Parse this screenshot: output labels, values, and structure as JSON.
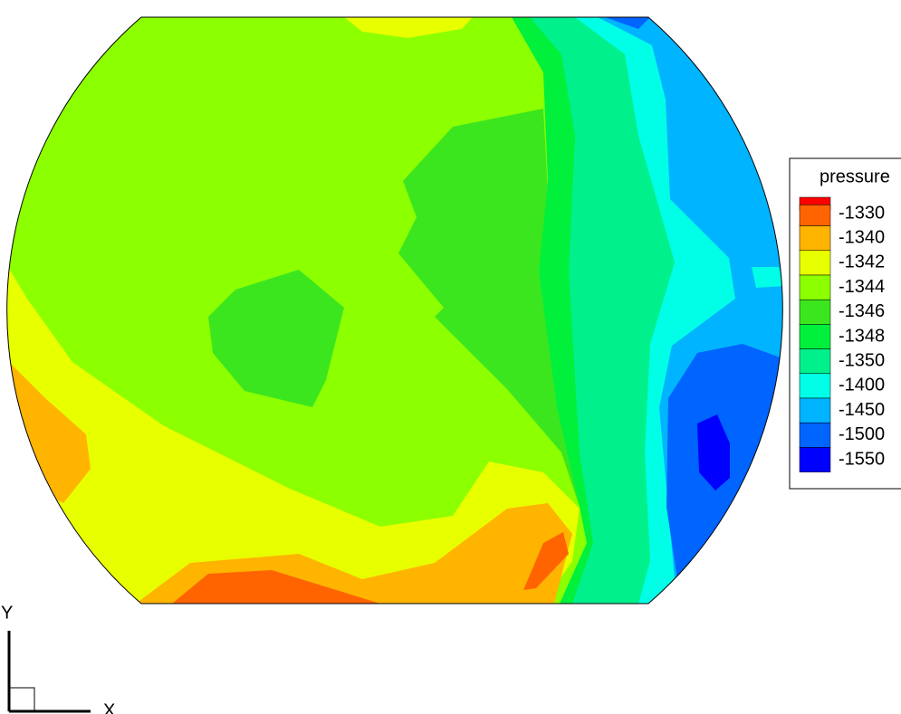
{
  "chart_data": {
    "type": "contour",
    "legend": {
      "title": "pressure",
      "levels": [
        -1330,
        -1340,
        -1342,
        -1344,
        -1346,
        -1348,
        -1350,
        -1400,
        -1450,
        -1500,
        -1550
      ],
      "colors": [
        "#ff0000",
        "#ff6400",
        "#ffb400",
        "#e8ff00",
        "#8cff00",
        "#3ce61e",
        "#00f03c",
        "#00f08c",
        "#00ffe6",
        "#00b4ff",
        "#0064ff",
        "#0000ff"
      ]
    },
    "x_label": "X",
    "y_label": "Y"
  }
}
